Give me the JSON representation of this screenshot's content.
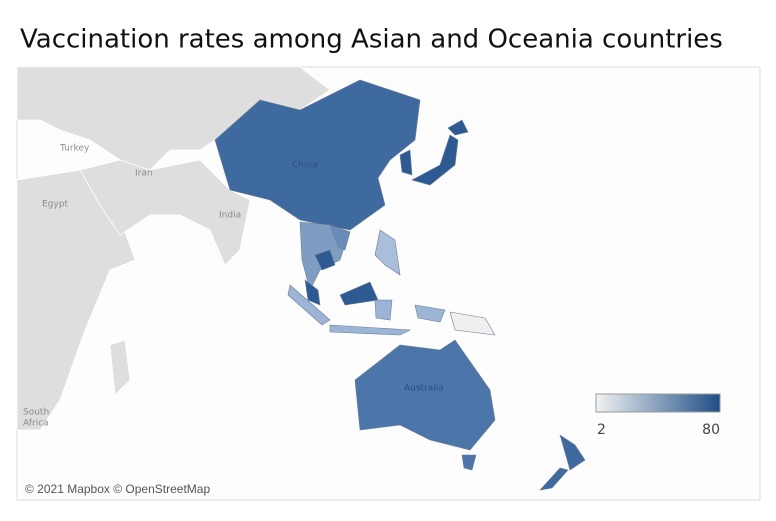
{
  "title": "Vaccination rates among Asian and Oceania countries",
  "map": {
    "labels": {
      "turkey": "Turkey",
      "iran": "Iran",
      "egypt": "Egypt",
      "india": "India",
      "china": "China",
      "australia": "Australia",
      "south_africa": [
        "South",
        "Africa"
      ]
    },
    "attribution": "© 2021 Mapbox © OpenStreetMap"
  },
  "legend": {
    "min": 2,
    "max": 80,
    "colors": [
      "#f2f2f2",
      "#1f4e86"
    ]
  }
}
